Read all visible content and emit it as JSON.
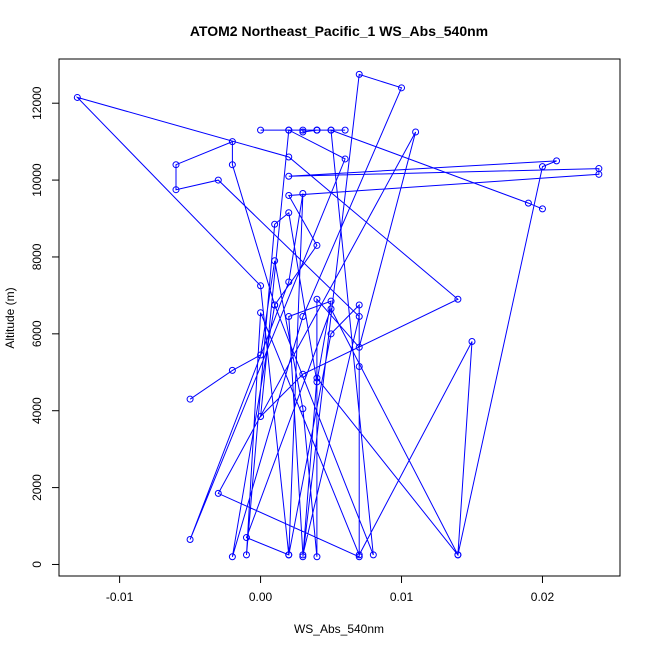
{
  "chart_data": {
    "type": "line",
    "title": "ATOM2 Northeast_Pacific_1 WS_Abs_540nm",
    "xlabel": "WS_Abs_540nm",
    "ylabel": "Altitude (m)",
    "xlim": [
      -0.0143,
      0.0255
    ],
    "ylim": [
      -300,
      13150
    ],
    "x_ticks": [
      -0.01,
      0.0,
      0.01,
      0.02
    ],
    "x_tick_labels": [
      "-0.01",
      "0.00",
      "0.01",
      "0.02"
    ],
    "y_ticks": [
      0,
      2000,
      4000,
      6000,
      8000,
      10000,
      12000
    ],
    "y_tick_labels": [
      "0",
      "2000",
      "4000",
      "6000",
      "8000",
      "10000",
      "12000"
    ],
    "grid": false,
    "series": [
      {
        "color": "#0000ff",
        "marker": "open-circle",
        "x": [
          -0.005,
          -0.002,
          0.0,
          0.001,
          0.003,
          0.004,
          0.004,
          0.007,
          0.011,
          -0.003,
          0.007,
          0.007,
          0.007,
          0.005,
          0.002,
          0.0,
          -0.013,
          0.002,
          0.014,
          0.003,
          0.0,
          0.002,
          0.006,
          -0.005,
          0.002,
          0.003,
          0.002,
          -0.001,
          0.005,
          0.014,
          0.02,
          0.021,
          0.002,
          0.024,
          0.024,
          0.002,
          0.004,
          0.001,
          -0.002,
          -0.002,
          -0.006,
          -0.006,
          -0.003,
          0.007,
          0.003,
          0.002,
          0.005,
          0.004,
          0.002,
          0.001,
          -0.001,
          0.0,
          0.007,
          0.015,
          0.014,
          0.004,
          0.003,
          0.007,
          0.01,
          0.003,
          -0.002,
          0.001,
          0.008,
          0.005,
          0.019,
          0.02
        ]
      },
      {
        "color": "#0000ff",
        "marker": "open-circle",
        "x": [
          0.004,
          0.005,
          0.002,
          0.0,
          0.003,
          0.003,
          0.004,
          0.006,
          0.004
        ]
      }
    ],
    "y_values": [
      [
        4300,
        5050,
        5450,
        7900,
        4050,
        200,
        6900,
        5650,
        11250,
        1850,
        200,
        5150,
        6750,
        6000,
        250,
        7250,
        12150,
        10600,
        6900,
        4950,
        3850,
        11300,
        10550,
        650,
        7350,
        9650,
        250,
        700,
        6650,
        250,
        10350,
        10500,
        10100,
        10300,
        10150,
        9600,
        8300,
        6750,
        10400,
        11000,
        10400,
        9750,
        10000,
        6450,
        250,
        6450,
        6850,
        4750,
        9150,
        8850,
        250,
        6550,
        250,
        5800,
        250,
        4850,
        200,
        12750,
        12400,
        6450,
        200,
        6750,
        250,
        11300,
        9400,
        9250
      ],
      [
        11300,
        11300,
        11300,
        11300,
        11300,
        11250,
        11300,
        11300,
        11300
      ]
    ]
  }
}
